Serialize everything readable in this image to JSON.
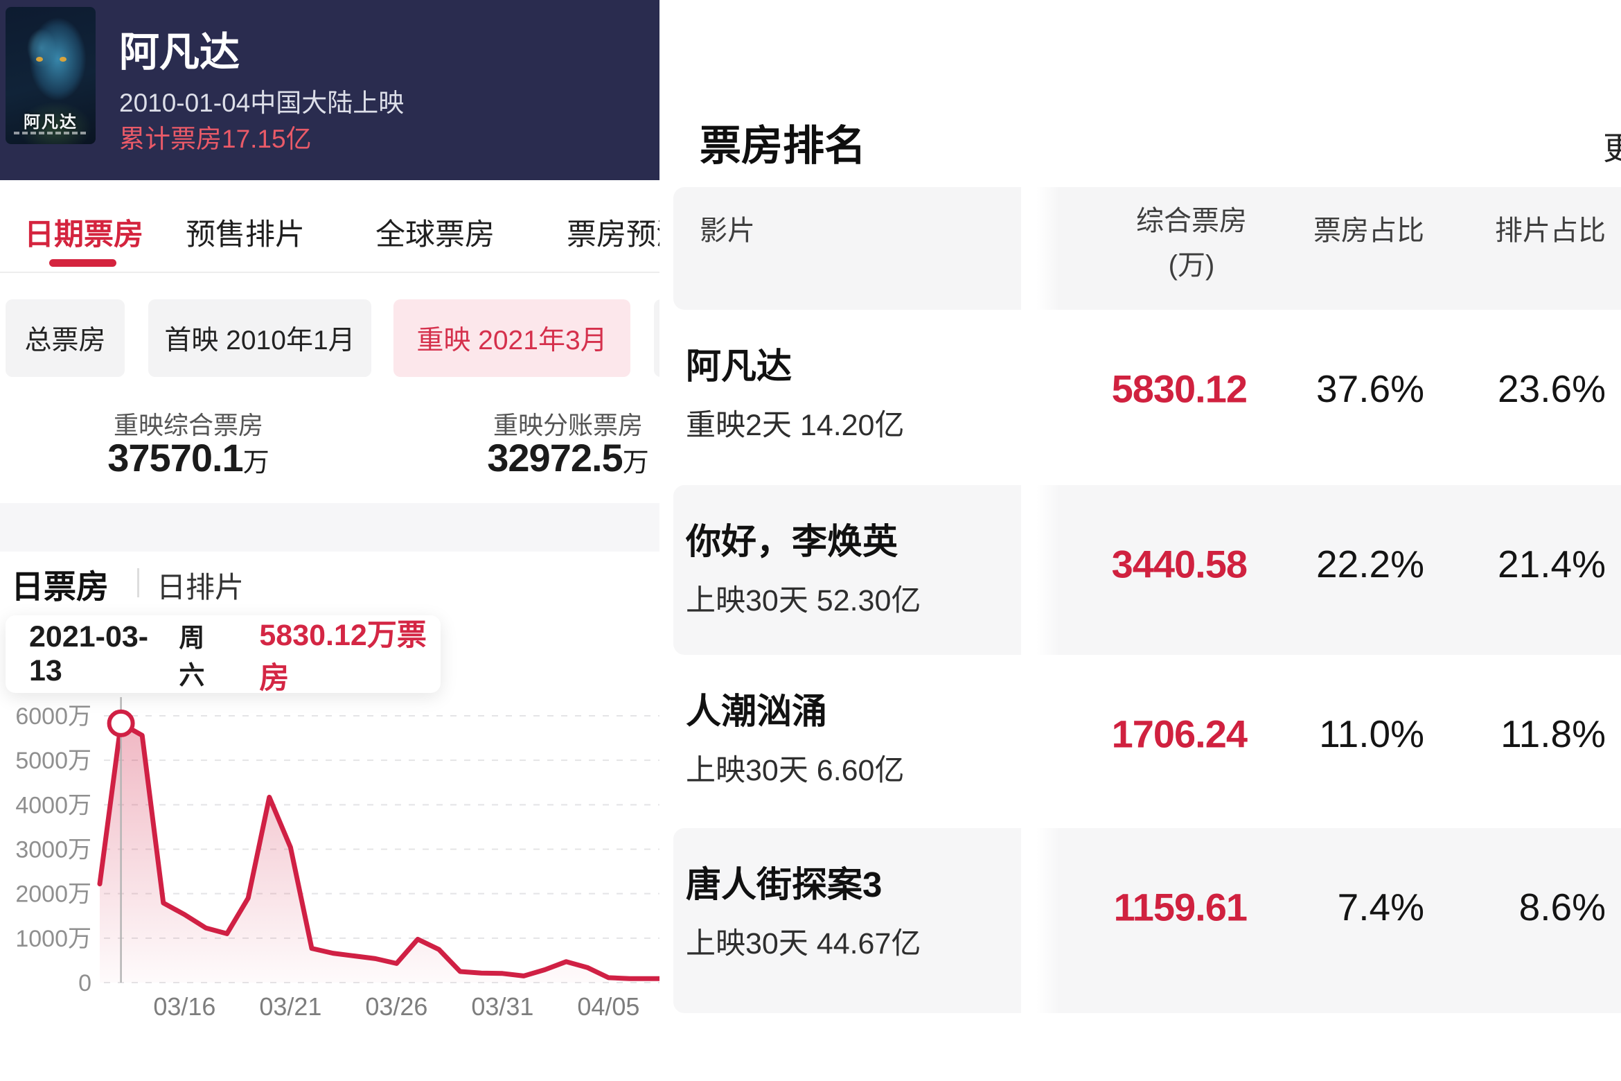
{
  "movie_header": {
    "title": "阿凡达",
    "release_info": "2010-01-04中国大陆上映",
    "cume_box_office": "累计票房17.15亿",
    "poster_title": "阿凡达"
  },
  "tabs": [
    {
      "label": "日期票房",
      "active": true
    },
    {
      "label": "预售排片",
      "active": false
    },
    {
      "label": "全球票房",
      "active": false
    },
    {
      "label": "票房预测",
      "active": false
    }
  ],
  "filters": [
    {
      "label": "总票房",
      "active": false
    },
    {
      "label": "首映 2010年1月",
      "active": false
    },
    {
      "label": "重映 2021年3月",
      "active": true
    }
  ],
  "stats": [
    {
      "label": "重映综合票房",
      "value": "37570.1",
      "unit": "万"
    },
    {
      "label": "重映分账票房",
      "value": "32972.5",
      "unit": "万"
    }
  ],
  "daily_section": {
    "title": "日票房",
    "alt_tab": "日排片"
  },
  "tooltip": {
    "date": "2021-03-13",
    "weekday": "周六",
    "value": "5830.12万票房"
  },
  "chart_data": {
    "type": "area",
    "title": "日票房",
    "x": [
      "03/12",
      "03/13",
      "03/14",
      "03/15",
      "03/16",
      "03/17",
      "03/18",
      "03/19",
      "03/20",
      "03/21",
      "03/22",
      "03/23",
      "03/24",
      "03/25",
      "03/26",
      "03/27",
      "03/28",
      "03/29",
      "03/30",
      "03/31",
      "04/01",
      "04/02",
      "04/03",
      "04/04",
      "04/05",
      "04/06",
      "04/07",
      "04/08"
    ],
    "values": [
      2220,
      5830.12,
      5560,
      1790,
      1530,
      1230,
      1100,
      1900,
      4170,
      3040,
      770,
      660,
      600,
      540,
      430,
      975,
      745,
      250,
      215,
      205,
      150,
      290,
      470,
      340,
      110,
      90,
      90,
      90
    ],
    "x_ticks": [
      "03/16",
      "03/21",
      "03/26",
      "03/31",
      "04/05"
    ],
    "y_ticks": [
      0,
      1000,
      2000,
      3000,
      4000,
      5000,
      6000
    ],
    "y_unit": "万",
    "ylim": [
      0,
      6000
    ],
    "grid": "dashed",
    "marker_x": "03/13",
    "marker_value": 5830.12,
    "line_color": "#d02044",
    "marker_line_color": "#b5b5b5"
  },
  "ranking": {
    "title": "票房排名",
    "more_label": "更多",
    "columns": [
      {
        "label": "影片"
      },
      {
        "label": "综合票房",
        "label2": "(万)"
      },
      {
        "label": "票房占比"
      },
      {
        "label": "排片占比"
      }
    ],
    "rows": [
      {
        "name": "阿凡达",
        "sub": "重映2天 14.20亿",
        "box": "5830.12",
        "box_share": "37.6%",
        "screen_share": "23.6%"
      },
      {
        "name": "你好，李焕英",
        "sub": "上映30天 52.30亿",
        "box": "3440.58",
        "box_share": "22.2%",
        "screen_share": "21.4%"
      },
      {
        "name": "人潮汹涌",
        "sub": "上映30天 6.60亿",
        "box": "1706.24",
        "box_share": "11.0%",
        "screen_share": "11.8%"
      },
      {
        "name": "唐人街探案3",
        "sub": "上映30天 44.67亿",
        "box": "1159.61",
        "box_share": "7.4%",
        "screen_share": "8.6%"
      }
    ]
  }
}
